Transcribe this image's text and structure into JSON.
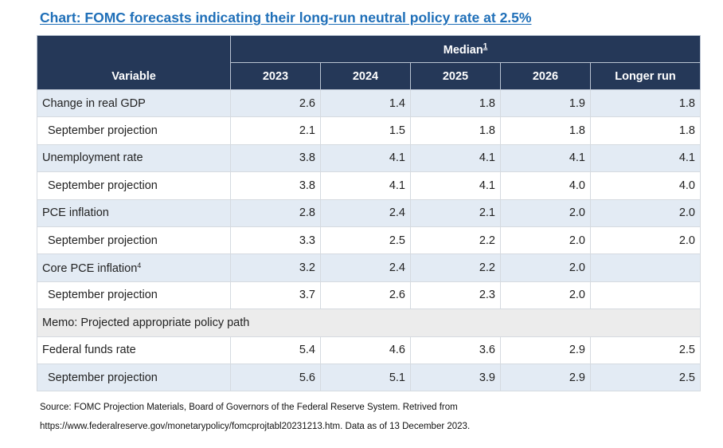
{
  "title": "Chart:  FOMC forecasts indicating their long-run neutral policy rate at 2.5%",
  "header": {
    "median_label": "Median",
    "median_footnote": "1",
    "variable_label": "Variable",
    "columns": [
      "2023",
      "2024",
      "2025",
      "2026",
      "Longer run"
    ]
  },
  "rows": [
    {
      "label": "Change in real GDP",
      "sup": "",
      "type": "main",
      "values": [
        "2.6",
        "1.4",
        "1.8",
        "1.9",
        "1.8"
      ]
    },
    {
      "label": "September projection",
      "sup": "",
      "type": "sub",
      "values": [
        "2.1",
        "1.5",
        "1.8",
        "1.8",
        "1.8"
      ]
    },
    {
      "label": "Unemployment rate",
      "sup": "",
      "type": "main",
      "values": [
        "3.8",
        "4.1",
        "4.1",
        "4.1",
        "4.1"
      ]
    },
    {
      "label": "September projection",
      "sup": "",
      "type": "sub",
      "values": [
        "3.8",
        "4.1",
        "4.1",
        "4.0",
        "4.0"
      ]
    },
    {
      "label": "PCE inflation",
      "sup": "",
      "type": "main",
      "values": [
        "2.8",
        "2.4",
        "2.1",
        "2.0",
        "2.0"
      ]
    },
    {
      "label": "September projection",
      "sup": "",
      "type": "sub",
      "values": [
        "3.3",
        "2.5",
        "2.2",
        "2.0",
        "2.0"
      ]
    },
    {
      "label": "Core PCE inflation",
      "sup": "4",
      "type": "main",
      "values": [
        "3.2",
        "2.4",
        "2.2",
        "2.0",
        ""
      ]
    },
    {
      "label": "September projection",
      "sup": "",
      "type": "sub",
      "values": [
        "3.7",
        "2.6",
        "2.3",
        "2.0",
        ""
      ]
    },
    {
      "label": "Memo: Projected appropriate policy path",
      "sup": "",
      "type": "memo",
      "values": []
    },
    {
      "label": "Federal funds rate",
      "sup": "",
      "type": "sub",
      "values": [
        "5.4",
        "4.6",
        "3.6",
        "2.9",
        "2.5"
      ]
    },
    {
      "label": "September projection",
      "sup": "",
      "type": "main",
      "values": [
        "5.6",
        "5.1",
        "3.9",
        "2.9",
        "2.5"
      ]
    }
  ],
  "source": {
    "line1": "Source: FOMC Projection Materials, Board of Governors of the Federal Reserve System. Retrived from",
    "line2": "https://www.federalreserve.gov/monetarypolicy/fomcprojtabl20231213.htm. Data as of 13 December 2023."
  }
}
